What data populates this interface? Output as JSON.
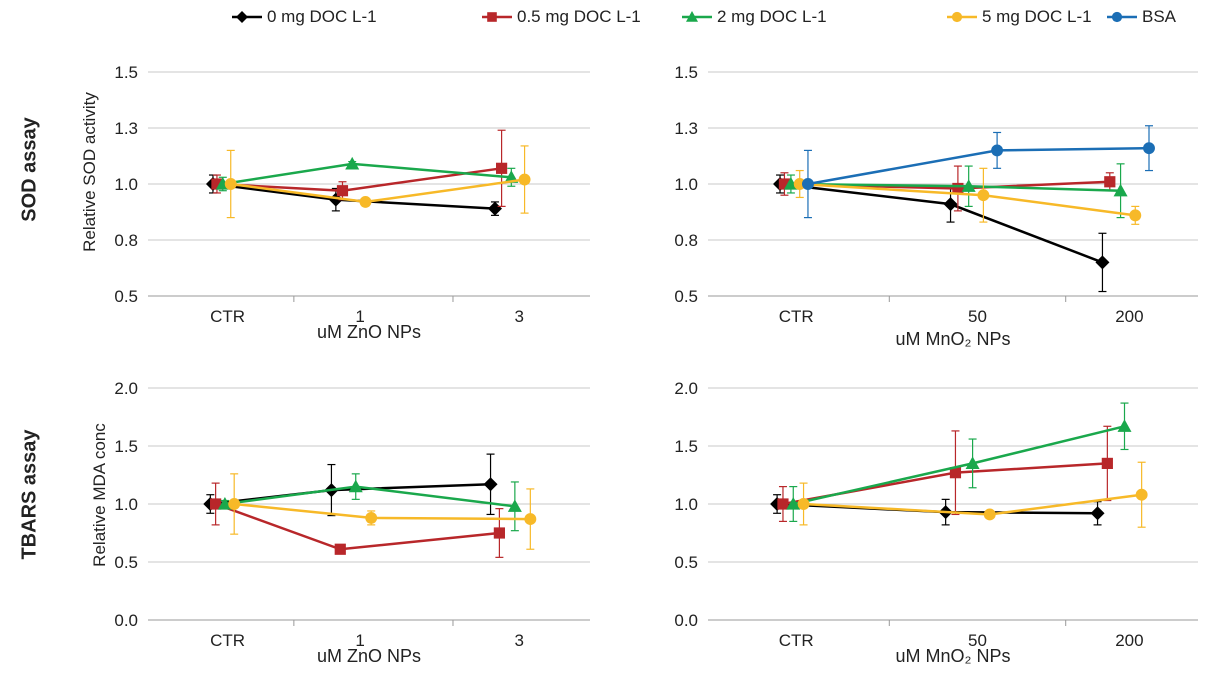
{
  "legend": [
    {
      "name": "0 mg DOC L-1",
      "color": "#000000",
      "marker": "diamond"
    },
    {
      "name": "0.5 mg DOC L-1",
      "color": "#b8272a",
      "marker": "square"
    },
    {
      "name": "2 mg DOC L-1",
      "color": "#1aa84c",
      "marker": "triangle"
    },
    {
      "name": "5 mg DOC L-1",
      "color": "#f7b928",
      "marker": "circle"
    },
    {
      "name": "BSA",
      "color": "#1b6eb5",
      "marker": "circle"
    }
  ],
  "row_labels": {
    "top": "SOD assay",
    "bottom": "TBARS assay"
  },
  "chart_data": [
    {
      "type": "line",
      "panel": "top-left",
      "xlabel": "uM ZnO NPs",
      "ylabel": "Relative SOD activity",
      "categories": [
        "CTR",
        "1",
        "3"
      ],
      "ylim": [
        0.5,
        1.5
      ],
      "yticks": [
        "0.5",
        "0.8",
        "1.0",
        "1.3",
        "1.5"
      ],
      "grid": true,
      "series": [
        {
          "name": "0 mg DOC L-1",
          "color": "#000000",
          "marker": "diamond",
          "values": [
            1.0,
            0.93,
            0.89
          ],
          "err": [
            0.04,
            0.05,
            0.03
          ]
        },
        {
          "name": "0.5 mg DOC L-1",
          "color": "#b8272a",
          "marker": "square",
          "values": [
            1.0,
            0.97,
            1.07
          ],
          "err": [
            0.04,
            0.04,
            0.17
          ]
        },
        {
          "name": "2 mg DOC L-1",
          "color": "#1aa84c",
          "marker": "triangle",
          "values": [
            1.0,
            1.09,
            1.03
          ],
          "err": [
            0.03,
            0.01,
            0.04
          ]
        },
        {
          "name": "5 mg DOC L-1",
          "color": "#f7b928",
          "marker": "circle",
          "values": [
            1.0,
            0.92,
            1.02
          ],
          "err": [
            0.15,
            0.0,
            0.15
          ]
        }
      ]
    },
    {
      "type": "line",
      "panel": "top-right",
      "xlabel": "uM MnO₂ NPs",
      "ylabel": "",
      "categories": [
        "CTR",
        "50",
        "200"
      ],
      "ylim": [
        0.5,
        1.5
      ],
      "yticks": [
        "0.5",
        "0.8",
        "1.0",
        "1.3",
        "1.5"
      ],
      "grid": true,
      "series": [
        {
          "name": "0 mg DOC L-1",
          "color": "#000000",
          "marker": "diamond",
          "values": [
            1.0,
            0.91,
            0.65
          ],
          "err": [
            0.04,
            0.08,
            0.13
          ]
        },
        {
          "name": "0.5 mg DOC L-1",
          "color": "#b8272a",
          "marker": "square",
          "values": [
            1.0,
            0.98,
            1.01
          ],
          "err": [
            0.05,
            0.1,
            0.04
          ]
        },
        {
          "name": "2 mg DOC L-1",
          "color": "#1aa84c",
          "marker": "triangle",
          "values": [
            1.0,
            0.99,
            0.97
          ],
          "err": [
            0.04,
            0.09,
            0.12
          ]
        },
        {
          "name": "5 mg DOC L-1",
          "color": "#f7b928",
          "marker": "circle",
          "values": [
            1.0,
            0.95,
            0.86
          ],
          "err": [
            0.06,
            0.12,
            0.04
          ]
        },
        {
          "name": "BSA",
          "color": "#1b6eb5",
          "marker": "circle",
          "values": [
            1.0,
            1.15,
            1.16
          ],
          "err": [
            0.15,
            0.08,
            0.1
          ]
        }
      ]
    },
    {
      "type": "line",
      "panel": "bottom-left",
      "xlabel": "uM ZnO NPs",
      "ylabel": "Relative MDA conc",
      "categories": [
        "CTR",
        "1",
        "3"
      ],
      "ylim": [
        0.0,
        2.0
      ],
      "yticks": [
        "0.0",
        "0.5",
        "1.0",
        "1.5",
        "2.0"
      ],
      "grid": true,
      "series": [
        {
          "name": "0 mg DOC L-1",
          "color": "#000000",
          "marker": "diamond",
          "values": [
            1.0,
            1.12,
            1.17
          ],
          "err": [
            0.08,
            0.22,
            0.26
          ]
        },
        {
          "name": "0.5 mg DOC L-1",
          "color": "#b8272a",
          "marker": "square",
          "values": [
            1.0,
            0.61,
            0.75
          ],
          "err": [
            0.18,
            0.0,
            0.21
          ]
        },
        {
          "name": "2 mg DOC L-1",
          "color": "#1aa84c",
          "marker": "triangle",
          "values": [
            1.0,
            1.15,
            0.98
          ],
          "err": [
            0.03,
            0.11,
            0.21
          ]
        },
        {
          "name": "5 mg DOC L-1",
          "color": "#f7b928",
          "marker": "circle",
          "values": [
            1.0,
            0.88,
            0.87
          ],
          "err": [
            0.26,
            0.06,
            0.26
          ]
        }
      ]
    },
    {
      "type": "line",
      "panel": "bottom-right",
      "xlabel": "uM MnO₂ NPs",
      "ylabel": "",
      "categories": [
        "CTR",
        "50",
        "200"
      ],
      "ylim": [
        0.0,
        2.0
      ],
      "yticks": [
        "0.0",
        "0.5",
        "1.0",
        "1.5",
        "2.0"
      ],
      "grid": true,
      "series": [
        {
          "name": "0 mg DOC L-1",
          "color": "#000000",
          "marker": "diamond",
          "values": [
            1.0,
            0.93,
            0.92
          ],
          "err": [
            0.08,
            0.11,
            0.1
          ]
        },
        {
          "name": "0.5 mg DOC L-1",
          "color": "#b8272a",
          "marker": "square",
          "values": [
            1.0,
            1.27,
            1.35
          ],
          "err": [
            0.15,
            0.36,
            0.32
          ]
        },
        {
          "name": "2 mg DOC L-1",
          "color": "#1aa84c",
          "marker": "triangle",
          "values": [
            1.0,
            1.35,
            1.67
          ],
          "err": [
            0.15,
            0.21,
            0.2
          ]
        },
        {
          "name": "5 mg DOC L-1",
          "color": "#f7b928",
          "marker": "circle",
          "values": [
            1.0,
            0.91,
            1.08
          ],
          "err": [
            0.18,
            0.0,
            0.28
          ]
        }
      ]
    }
  ]
}
